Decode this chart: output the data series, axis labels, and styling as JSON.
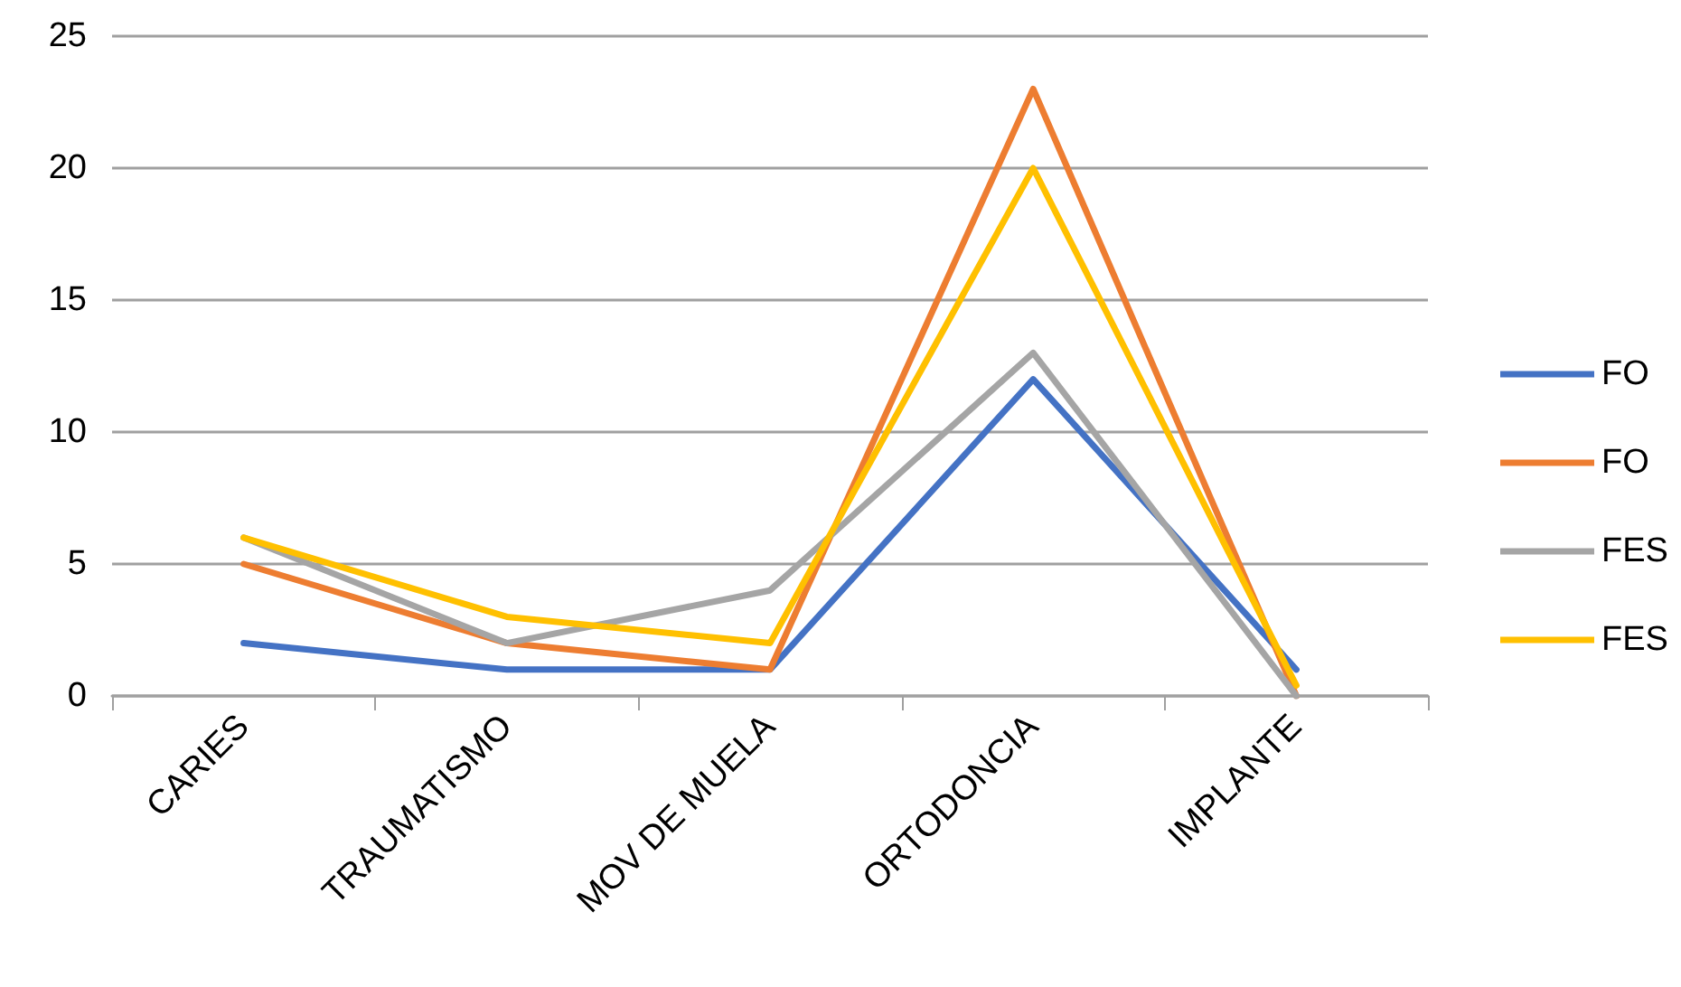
{
  "chart_data": {
    "type": "line",
    "categories": [
      "CARIES",
      "TRAUMATISMO",
      "MOV DE MUELA",
      "ORTODONCIA",
      "IMPLANTE"
    ],
    "series": [
      {
        "name": "FO",
        "color": "#4472c4",
        "values": [
          2,
          1,
          1,
          12,
          1
        ]
      },
      {
        "name": "FO",
        "color": "#ed7d31",
        "values": [
          5,
          2,
          1,
          23,
          0
        ]
      },
      {
        "name": "FES",
        "color": "#a5a5a5",
        "values": [
          6,
          2,
          4,
          13,
          0
        ]
      },
      {
        "name": "FES",
        "color": "#ffc000",
        "values": [
          6,
          3,
          2,
          20,
          0.4
        ]
      }
    ],
    "ylim": [
      0,
      25
    ],
    "yticks": [
      0,
      5,
      10,
      15,
      20,
      25
    ],
    "grid": "y",
    "legend": "right",
    "marker": "none",
    "line_style": "solid"
  }
}
